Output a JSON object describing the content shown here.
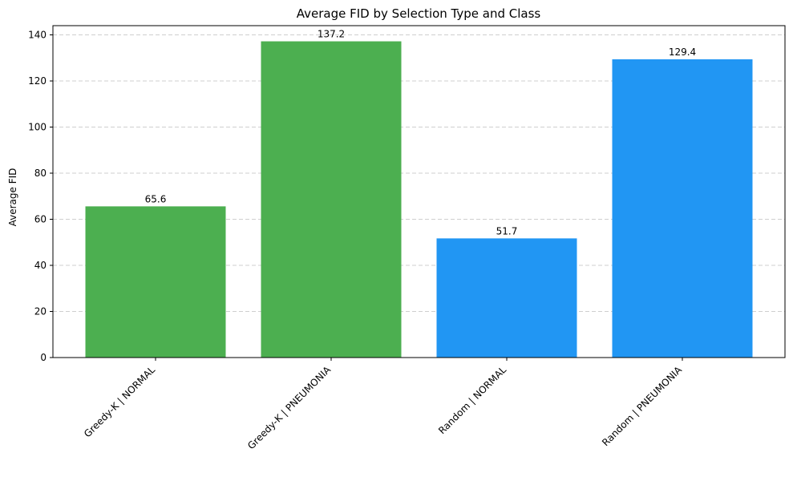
{
  "chart_data": {
    "type": "bar",
    "title": "Average FID by Selection Type and Class",
    "xlabel": "",
    "ylabel": "Average FID",
    "categories": [
      "Greedy-K | NORMAL",
      "Greedy-K | PNEUMONIA",
      "Random | NORMAL",
      "Random | PNEUMONIA"
    ],
    "values": [
      65.6,
      137.2,
      51.7,
      129.4
    ],
    "data_labels": [
      "65.6",
      "137.2",
      "51.7",
      "129.4"
    ],
    "bar_colors": [
      "#4caf50",
      "#4caf50",
      "#2196f3",
      "#2196f3"
    ],
    "ylim": [
      0,
      144
    ],
    "yticks": [
      0,
      20,
      40,
      60,
      80,
      100,
      120,
      140
    ],
    "grid": "y-dashed",
    "legend": "none"
  }
}
